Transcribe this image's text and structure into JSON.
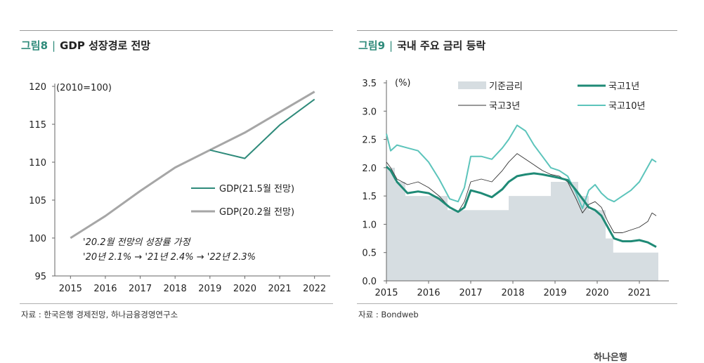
{
  "left": {
    "fig_no": "그림8",
    "fig_sep": "|",
    "fig_title": "GDP 성장경로 전망",
    "source": "자료 : 한국은행 경제전망, 하나금융경영연구소"
  },
  "right": {
    "fig_no": "그림9",
    "fig_sep": "|",
    "fig_title": "국내 주요 금리 등락",
    "source": "자료 : Bondweb"
  },
  "footer": {
    "logo_text": "하나은행"
  },
  "chart_data": [
    {
      "type": "line",
      "ylim": [
        95,
        120
      ],
      "y_ticks": [
        "95",
        "100",
        "105",
        "110",
        "115",
        "120"
      ],
      "x_ticks": [
        "2015",
        "2016",
        "2017",
        "2018",
        "2019",
        "2020",
        "2021",
        "2022"
      ],
      "unit_label": "(2010=100)",
      "annotation": [
        "'20.2월 전망의 성장률 가정",
        "'20년 2.1% → '21년 2.4% → '22년 2.3%"
      ],
      "colors": {
        "GDP(21.5월 전망)": "#2e8a7a",
        "GDP(20.2월 전망)": "#a6a6a6"
      },
      "series": [
        {
          "name": "GDP(21.5월 전망)",
          "x": [
            2019,
            2020,
            2021,
            2022
          ],
          "values": [
            111.6,
            110.5,
            114.9,
            118.3
          ]
        },
        {
          "name": "GDP(20.2월 전망)",
          "x": [
            2015,
            2016,
            2017,
            2018,
            2019,
            2020,
            2021,
            2022
          ],
          "values": [
            100.0,
            102.9,
            106.2,
            109.3,
            111.6,
            113.9,
            116.6,
            119.3
          ]
        }
      ]
    },
    {
      "type": "line",
      "ylim": [
        0.0,
        3.5
      ],
      "y_ticks": [
        "0.0",
        "0.5",
        "1.0",
        "1.5",
        "2.0",
        "2.5",
        "3.0",
        "3.5"
      ],
      "x_ticks": [
        "2015",
        "2016",
        "2017",
        "2018",
        "2019",
        "2020",
        "2021"
      ],
      "unit_label": "(%)",
      "colors": {
        "기준금리": "#d6dde1",
        "국고1년": "#1f8a76",
        "국고3년": "#333333",
        "국고10년": "#5cc4bb"
      },
      "series": [
        {
          "name": "기준금리",
          "kind": "area",
          "x": [
            2015.0,
            2015.2,
            2015.2,
            2015.45,
            2015.45,
            2016.45,
            2016.45,
            2017.9,
            2017.9,
            2018.9,
            2018.9,
            2019.55,
            2019.55,
            2019.8,
            2019.8,
            2020.2,
            2020.2,
            2020.38,
            2020.38,
            2021.45
          ],
          "values": [
            2.0,
            2.0,
            1.75,
            1.75,
            1.5,
            1.5,
            1.25,
            1.25,
            1.5,
            1.5,
            1.75,
            1.75,
            1.5,
            1.5,
            1.25,
            1.25,
            0.75,
            0.75,
            0.5,
            0.5
          ]
        },
        {
          "name": "국고1년",
          "x": [
            2015.0,
            2015.1,
            2015.25,
            2015.5,
            2015.75,
            2016.0,
            2016.25,
            2016.5,
            2016.7,
            2016.85,
            2017.0,
            2017.25,
            2017.5,
            2017.75,
            2017.9,
            2018.1,
            2018.3,
            2018.5,
            2018.7,
            2018.9,
            2019.1,
            2019.3,
            2019.5,
            2019.65,
            2019.8,
            2019.95,
            2020.1,
            2020.25,
            2020.4,
            2020.6,
            2020.8,
            2021.0,
            2021.2,
            2021.4
          ],
          "values": [
            2.02,
            1.95,
            1.75,
            1.55,
            1.58,
            1.55,
            1.45,
            1.3,
            1.22,
            1.3,
            1.6,
            1.55,
            1.48,
            1.62,
            1.75,
            1.85,
            1.88,
            1.9,
            1.88,
            1.85,
            1.82,
            1.78,
            1.6,
            1.45,
            1.3,
            1.25,
            1.15,
            0.95,
            0.75,
            0.7,
            0.7,
            0.72,
            0.68,
            0.6
          ]
        },
        {
          "name": "국고3년",
          "x": [
            2015.0,
            2015.1,
            2015.25,
            2015.5,
            2015.75,
            2016.0,
            2016.25,
            2016.5,
            2016.7,
            2016.85,
            2017.0,
            2017.25,
            2017.5,
            2017.75,
            2017.9,
            2018.1,
            2018.3,
            2018.5,
            2018.7,
            2018.9,
            2019.1,
            2019.3,
            2019.5,
            2019.65,
            2019.8,
            2019.95,
            2020.1,
            2020.25,
            2020.4,
            2020.6,
            2020.8,
            2021.0,
            2021.2,
            2021.3,
            2021.4
          ],
          "values": [
            2.1,
            2.0,
            1.8,
            1.7,
            1.75,
            1.65,
            1.5,
            1.3,
            1.22,
            1.4,
            1.75,
            1.8,
            1.75,
            1.95,
            2.1,
            2.25,
            2.15,
            2.05,
            1.95,
            1.88,
            1.85,
            1.75,
            1.45,
            1.2,
            1.35,
            1.4,
            1.3,
            1.05,
            0.85,
            0.85,
            0.9,
            0.95,
            1.05,
            1.2,
            1.15
          ]
        },
        {
          "name": "국고10년",
          "x": [
            2015.0,
            2015.1,
            2015.25,
            2015.5,
            2015.75,
            2016.0,
            2016.25,
            2016.5,
            2016.7,
            2016.85,
            2017.0,
            2017.25,
            2017.5,
            2017.75,
            2017.9,
            2018.1,
            2018.3,
            2018.5,
            2018.7,
            2018.9,
            2019.1,
            2019.3,
            2019.5,
            2019.65,
            2019.8,
            2019.95,
            2020.1,
            2020.25,
            2020.4,
            2020.6,
            2020.8,
            2021.0,
            2021.15,
            2021.3,
            2021.4
          ],
          "values": [
            2.6,
            2.3,
            2.4,
            2.35,
            2.3,
            2.1,
            1.8,
            1.45,
            1.4,
            1.65,
            2.2,
            2.2,
            2.15,
            2.35,
            2.5,
            2.75,
            2.65,
            2.4,
            2.2,
            2.0,
            1.95,
            1.85,
            1.55,
            1.28,
            1.6,
            1.7,
            1.55,
            1.45,
            1.4,
            1.5,
            1.6,
            1.75,
            1.95,
            2.15,
            2.1
          ]
        }
      ]
    }
  ]
}
